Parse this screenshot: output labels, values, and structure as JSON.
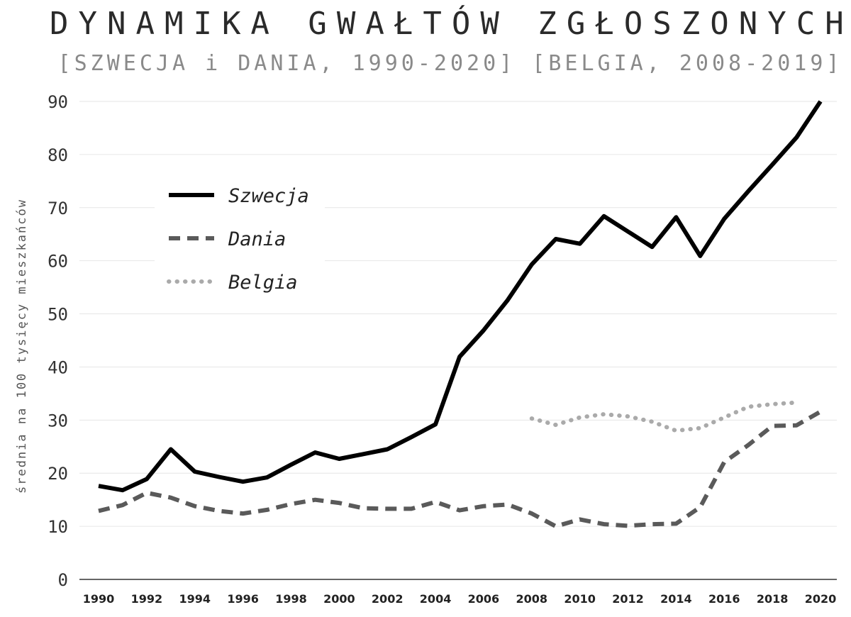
{
  "chart_data": {
    "type": "line",
    "title": "DYNAMIKA GWAŁTÓW ZGŁOSZONYCH",
    "subtitle": "[SZWECJA i DANIA, 1990-2020] [BELGIA, 2008-2019]",
    "xlabel": "",
    "ylabel": "średnia na 100 tysięcy mieszkańców",
    "xlim": [
      1990,
      2020
    ],
    "ylim": [
      0,
      90
    ],
    "x_ticks": [
      "1990",
      "1992",
      "1994",
      "1996",
      "1998",
      "2000",
      "2002",
      "2004",
      "2006",
      "2008",
      "2010",
      "2012",
      "2014",
      "2016",
      "2018",
      "2020"
    ],
    "y_ticks": [
      "0",
      "10",
      "20",
      "30",
      "40",
      "50",
      "60",
      "70",
      "80",
      "90"
    ],
    "grid": "horizontal",
    "legend_position": "upper-left",
    "series": [
      {
        "name": "Szwecja",
        "style": "solid",
        "color": "#000000",
        "x": [
          1990,
          1991,
          1992,
          1993,
          1994,
          1995,
          1996,
          1997,
          1998,
          1999,
          2000,
          2001,
          2002,
          2003,
          2004,
          2005,
          2006,
          2007,
          2008,
          2009,
          2010,
          2011,
          2012,
          2013,
          2014,
          2015,
          2016,
          2017,
          2018,
          2019,
          2020
        ],
        "values": [
          17.6,
          16.8,
          18.9,
          24.5,
          20.3,
          19.3,
          18.4,
          19.2,
          21.6,
          23.9,
          22.7,
          23.6,
          24.5,
          26.8,
          29.2,
          41.9,
          46.9,
          52.6,
          59.3,
          64.1,
          63.2,
          68.4,
          65.5,
          62.6,
          68.2,
          60.9,
          67.9,
          73.1,
          78.1,
          83.2,
          90.0
        ]
      },
      {
        "name": "Dania",
        "style": "dashed",
        "color": "#5a5a5a",
        "x": [
          1990,
          1991,
          1992,
          1993,
          1994,
          1995,
          1996,
          1997,
          1998,
          1999,
          2000,
          2001,
          2002,
          2003,
          2004,
          2005,
          2006,
          2007,
          2008,
          2009,
          2010,
          2011,
          2012,
          2013,
          2014,
          2015,
          2016,
          2017,
          2018,
          2019,
          2020
        ],
        "values": [
          12.9,
          14.0,
          16.3,
          15.4,
          13.8,
          12.9,
          12.4,
          13.1,
          14.2,
          15.0,
          14.4,
          13.4,
          13.3,
          13.3,
          14.6,
          13.0,
          13.8,
          14.1,
          12.4,
          10.0,
          11.3,
          10.4,
          10.1,
          10.4,
          10.5,
          13.6,
          22.1,
          25.3,
          28.9,
          29.0,
          31.6
        ]
      },
      {
        "name": "Belgia",
        "style": "dotted",
        "color": "#aaaaaa",
        "x": [
          2008,
          2009,
          2010,
          2011,
          2012,
          2013,
          2014,
          2015,
          2016,
          2017,
          2018,
          2019
        ],
        "values": [
          30.3,
          29.1,
          30.5,
          31.1,
          30.7,
          29.7,
          28.0,
          28.5,
          30.5,
          32.5,
          33.0,
          33.3
        ]
      }
    ]
  }
}
